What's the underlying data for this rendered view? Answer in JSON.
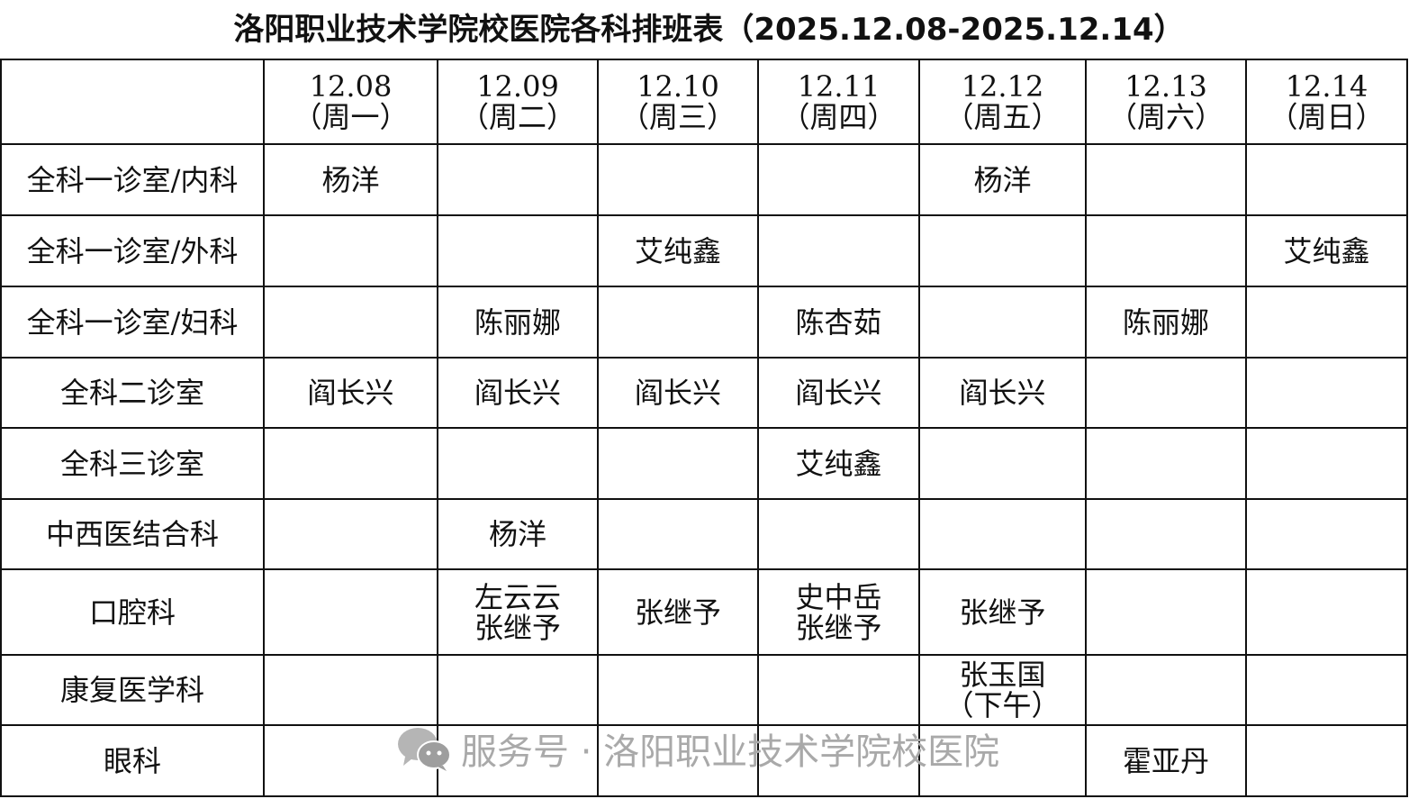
{
  "title": "洛阳职业技术学院校医院各科排班表（2025.12.08-2025.12.14）",
  "columns": [
    {
      "date": "12.08",
      "day": "（周一）"
    },
    {
      "date": "12.09",
      "day": "（周二）"
    },
    {
      "date": "12.10",
      "day": "（周三）"
    },
    {
      "date": "12.11",
      "day": "（周四）"
    },
    {
      "date": "12.12",
      "day": "（周五）"
    },
    {
      "date": "12.13",
      "day": "（周六）"
    },
    {
      "date": "12.14",
      "day": "（周日）"
    }
  ],
  "rows": [
    {
      "dept": "全科一诊室/内科",
      "cells": [
        [
          "杨洋"
        ],
        [],
        [],
        [],
        [
          "杨洋"
        ],
        [],
        []
      ]
    },
    {
      "dept": "全科一诊室/外科",
      "cells": [
        [],
        [],
        [
          "艾纯鑫"
        ],
        [],
        [],
        [],
        [
          "艾纯鑫"
        ]
      ]
    },
    {
      "dept": "全科一诊室/妇科",
      "cells": [
        [],
        [
          "陈丽娜"
        ],
        [],
        [
          "陈杏茹"
        ],
        [],
        [
          "陈丽娜"
        ],
        []
      ]
    },
    {
      "dept": "全科二诊室",
      "cells": [
        [
          "阎长兴"
        ],
        [
          "阎长兴"
        ],
        [
          "阎长兴"
        ],
        [
          "阎长兴"
        ],
        [
          "阎长兴"
        ],
        [],
        []
      ]
    },
    {
      "dept": "全科三诊室",
      "cells": [
        [],
        [],
        [],
        [
          "艾纯鑫"
        ],
        [],
        [],
        []
      ]
    },
    {
      "dept": "中西医结合科",
      "cells": [
        [],
        [
          "杨洋"
        ],
        [],
        [],
        [],
        [],
        []
      ]
    },
    {
      "dept": "口腔科",
      "cells": [
        [],
        [
          "左云云",
          "张继予"
        ],
        [
          "张继予"
        ],
        [
          "史中岳",
          "张继予"
        ],
        [
          "张继予"
        ],
        [],
        []
      ]
    },
    {
      "dept": "康复医学科",
      "cells": [
        [],
        [],
        [],
        [],
        [
          "张玉国",
          "（下午）"
        ],
        [],
        []
      ]
    },
    {
      "dept": "眼科",
      "cells": [
        [],
        [],
        [],
        [],
        [],
        [
          "霍亚丹"
        ],
        []
      ]
    }
  ],
  "watermark": {
    "icon": "wechat-icon",
    "text": "服务号 · 洛阳职业技术学院校医院"
  }
}
